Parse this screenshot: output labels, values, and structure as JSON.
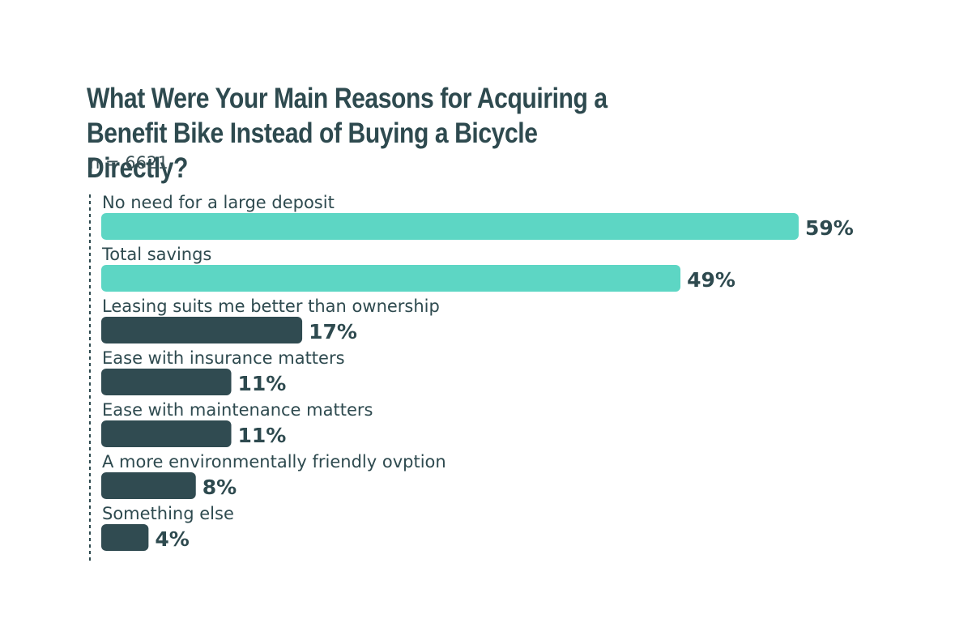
{
  "colors": {
    "highlight": "#5dd6c4",
    "default": "#304b51",
    "text": "#2e4a4f",
    "axis": "#2e4a4f"
  },
  "chart_data": {
    "type": "bar",
    "orientation": "horizontal",
    "title": "What Were Your Main Reasons for Acquiring a Benefit Bike Instead of Buying a Bicycle Directly?",
    "subtitle": "n = 6621",
    "categories": [
      "No need for a large deposit",
      "Total savings",
      "Leasing suits me better than ownership",
      "Ease with insurance matters",
      "Ease with maintenance matters",
      "A more environmentally friendly ovption",
      "Something else"
    ],
    "values": [
      59,
      49,
      17,
      11,
      11,
      8,
      4
    ],
    "value_labels": [
      "59%",
      "49%",
      "17%",
      "11%",
      "11%",
      "8%",
      "4%"
    ],
    "highlighted": [
      true,
      true,
      false,
      false,
      false,
      false,
      false
    ],
    "unit": "%",
    "xlim": [
      0,
      59
    ],
    "grid": false,
    "legend": "none"
  }
}
